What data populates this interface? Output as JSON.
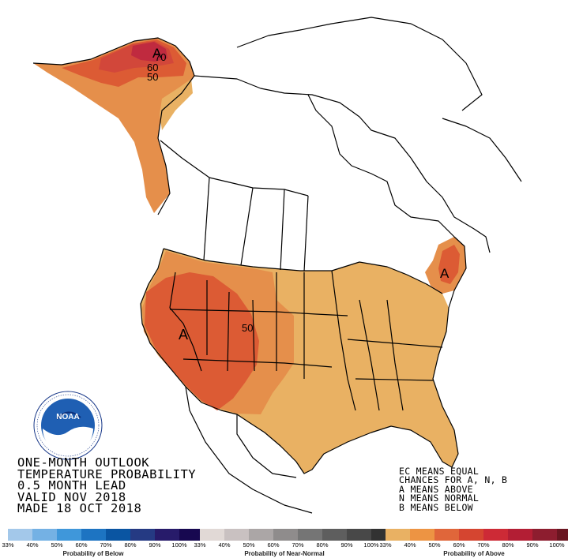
{
  "title_lines": [
    "ONE-MONTH OUTLOOK",
    "TEMPERATURE PROBABILITY",
    "0.5 MONTH LEAD",
    "VALID NOV 2018",
    "MADE 18 OCT 2018"
  ],
  "legend_notes": [
    "EC MEANS EQUAL",
    "CHANCES FOR A, N, B",
    "A MEANS ABOVE",
    "N MEANS NORMAL",
    "B MEANS BELOW"
  ],
  "map_labels": {
    "alaska_70": "70",
    "alaska_60": "60",
    "alaska_50": "50",
    "conus_50": "50",
    "alaska_a": "A",
    "west_a": "A",
    "northeast_a": "A"
  },
  "logo_text": "NOAA",
  "scales": [
    {
      "name": "Probability of Below",
      "ticks": [
        "33%",
        "40%",
        "50%",
        "60%",
        "70%",
        "80%",
        "90%",
        "100%"
      ],
      "colors": [
        "#a3c8ea",
        "#74b1e4",
        "#3f97da",
        "#1d74c2",
        "#0a55a2",
        "#253a83",
        "#271b6a",
        "#170850"
      ]
    },
    {
      "name": "Probability of Near-Normal",
      "ticks": [
        "33%",
        "40%",
        "50%",
        "60%",
        "70%",
        "80%",
        "90%",
        "100%"
      ],
      "colors": [
        "#e1d9d6",
        "#c9c1c1",
        "#aba6a6",
        "#8f8c8c",
        "#757575",
        "#5e5e5e",
        "#484848",
        "#323232"
      ]
    },
    {
      "name": "Probability of Above",
      "ticks": [
        "33%",
        "40%",
        "50%",
        "60%",
        "70%",
        "80%",
        "90%",
        "100%"
      ],
      "colors": [
        "#e9b163",
        "#ed9443",
        "#e0663a",
        "#d54530",
        "#cd2a36",
        "#b31e34",
        "#8d1d2f",
        "#6a1520"
      ]
    }
  ],
  "colors": {
    "above_33": "#e9b163",
    "above_40": "#e58f4b",
    "above_50": "#dc5b34",
    "above_60": "#d2473a",
    "above_70": "#c02a3f"
  }
}
